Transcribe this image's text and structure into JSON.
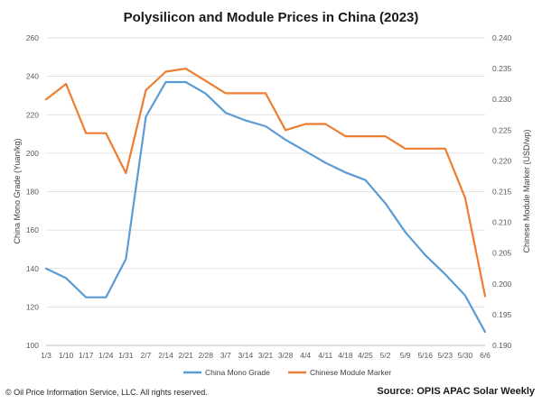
{
  "chart_data": {
    "type": "line",
    "title": "Polysilicon and Module Prices in China (2023)",
    "xlabel": "",
    "ylabel": "China Mono Grade (Yuan/kg)",
    "y2label": "Chinese Module Marker (USD/wp)",
    "categories": [
      "1/3",
      "1/10",
      "1/17",
      "1/24",
      "1/31",
      "2/7",
      "2/14",
      "2/21",
      "2/28",
      "3/7",
      "3/14",
      "3/21",
      "3/28",
      "4/4",
      "4/11",
      "4/18",
      "4/25",
      "5/2",
      "5/9",
      "5/16",
      "5/23",
      "5/30",
      "6/6"
    ],
    "ylim": [
      100,
      260
    ],
    "y_ticks": [
      100,
      120,
      140,
      160,
      180,
      200,
      220,
      240,
      260
    ],
    "y2lim": [
      0.19,
      0.24
    ],
    "y2_ticks": [
      "0.190",
      "0.195",
      "0.200",
      "0.205",
      "0.210",
      "0.215",
      "0.220",
      "0.225",
      "0.230",
      "0.235",
      "0.240"
    ],
    "grid": true,
    "legend_position": "bottom",
    "series": [
      {
        "name": "China Mono Grade",
        "axis": "left",
        "color": "#5b9bd5",
        "values": [
          140,
          135,
          125,
          125,
          145,
          219,
          237,
          237,
          231,
          221,
          217,
          214,
          207,
          201,
          195,
          190,
          186,
          174,
          159,
          147,
          137,
          126,
          107
        ]
      },
      {
        "name": "Chinese Module Marker",
        "axis": "right",
        "color": "#ed7d31",
        "values": [
          0.23,
          0.2325,
          0.2245,
          0.2245,
          0.218,
          0.2315,
          0.2345,
          0.235,
          0.233,
          0.231,
          0.231,
          0.231,
          0.225,
          0.226,
          0.226,
          0.224,
          0.224,
          0.224,
          0.222,
          0.222,
          0.222,
          0.214,
          0.198
        ]
      }
    ]
  },
  "footer": {
    "copyright": "© Oil Price Information Service, LLC.  All rights reserved.",
    "source": "Source: OPIS APAC Solar Weekly"
  }
}
